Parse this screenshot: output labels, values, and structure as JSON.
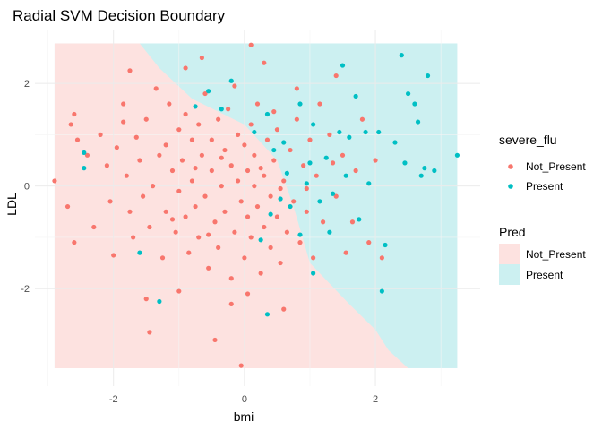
{
  "chart_data": {
    "type": "scatter",
    "title": "Radial SVM Decision Boundary",
    "xlabel": "bmi",
    "ylabel": "LDL",
    "xlim": [
      -3.2,
      3.6
    ],
    "ylim": [
      -3.9,
      3.05
    ],
    "x_ticks": [
      -2,
      0,
      2
    ],
    "y_ticks": [
      -2,
      0,
      2
    ],
    "x_tick_labels": [
      "-2",
      "0",
      "2"
    ],
    "y_tick_labels": [
      "-2",
      "0",
      "2"
    ],
    "grid": true,
    "legend_position": "right",
    "background_region": {
      "x_range": [
        -2.9,
        3.25
      ],
      "y_range": [
        -3.55,
        2.78
      ],
      "description_class": "Not_Present",
      "boundary_polyline": [
        [
          -1.6,
          2.78
        ],
        [
          -1.3,
          2.3
        ],
        [
          -0.8,
          1.7
        ],
        [
          0.0,
          1.2
        ],
        [
          0.5,
          0.5
        ],
        [
          0.75,
          -0.4
        ],
        [
          1.0,
          -1.5
        ],
        [
          1.6,
          -2.3
        ],
        [
          2.0,
          -2.8
        ],
        [
          2.2,
          -3.2
        ],
        [
          2.5,
          -3.55
        ]
      ]
    },
    "legends": [
      {
        "title": "severe_flu",
        "kind": "points",
        "entries": [
          {
            "label": "Not_Present",
            "color": "#f8766d"
          },
          {
            "label": "Present",
            "color": "#00bfc4"
          }
        ]
      },
      {
        "title": "Pred",
        "kind": "fill",
        "entries": [
          {
            "label": "Not_Present",
            "color": "#fde2e0"
          },
          {
            "label": "Present",
            "color": "#ccf0f1"
          }
        ]
      }
    ],
    "series": [
      {
        "name": "Not_Present",
        "color": "#f8766d",
        "points": [
          [
            -2.9,
            0.1
          ],
          [
            -2.6,
            1.4
          ],
          [
            -2.65,
            1.2
          ],
          [
            -2.55,
            0.9
          ],
          [
            -2.6,
            -1.1
          ],
          [
            -2.7,
            -0.4
          ],
          [
            -2.4,
            0.6
          ],
          [
            -2.2,
            1.0
          ],
          [
            -2.1,
            0.4
          ],
          [
            -2.05,
            -0.3
          ],
          [
            -2.0,
            -1.35
          ],
          [
            -1.95,
            0.75
          ],
          [
            -1.85,
            1.25
          ],
          [
            -1.8,
            0.2
          ],
          [
            -1.75,
            -0.5
          ],
          [
            -1.7,
            -1.0
          ],
          [
            -1.65,
            0.95
          ],
          [
            -1.6,
            0.5
          ],
          [
            -1.55,
            -0.2
          ],
          [
            -1.5,
            1.3
          ],
          [
            -1.45,
            -0.8
          ],
          [
            -1.4,
            0.0
          ],
          [
            -1.35,
            1.9
          ],
          [
            -1.3,
            0.6
          ],
          [
            -1.25,
            -1.4
          ],
          [
            -1.2,
            0.8
          ],
          [
            -1.2,
            -0.5
          ],
          [
            -1.15,
            1.6
          ],
          [
            -1.1,
            0.3
          ],
          [
            -1.05,
            -0.9
          ],
          [
            -1.0,
            1.1
          ],
          [
            -1.0,
            -0.1
          ],
          [
            -0.95,
            0.5
          ],
          [
            -0.9,
            -0.6
          ],
          [
            -0.9,
            1.4
          ],
          [
            -0.85,
            -1.3
          ],
          [
            -0.8,
            0.9
          ],
          [
            -0.8,
            0.1
          ],
          [
            -0.75,
            -0.4
          ],
          [
            -0.7,
            1.2
          ],
          [
            -0.7,
            -1.0
          ],
          [
            -0.65,
            0.6
          ],
          [
            -0.6,
            -0.2
          ],
          [
            -0.6,
            1.8
          ],
          [
            -0.55,
            -1.6
          ],
          [
            -0.5,
            0.3
          ],
          [
            -0.5,
            0.9
          ],
          [
            -0.45,
            -0.7
          ],
          [
            -0.4,
            1.3
          ],
          [
            -0.4,
            -1.2
          ],
          [
            -0.35,
            0.0
          ],
          [
            -0.3,
            0.7
          ],
          [
            -0.3,
            -0.5
          ],
          [
            -0.25,
            1.5
          ],
          [
            -0.2,
            -1.8
          ],
          [
            -0.2,
            0.4
          ],
          [
            -0.15,
            -0.9
          ],
          [
            -0.1,
            1.0
          ],
          [
            -0.1,
            0.1
          ],
          [
            -0.05,
            -0.3
          ],
          [
            0.0,
            0.8
          ],
          [
            0.0,
            -1.4
          ],
          [
            0.05,
            0.3
          ],
          [
            0.05,
            -0.6
          ],
          [
            0.1,
            1.2
          ],
          [
            0.1,
            -1.0
          ],
          [
            0.15,
            0.0
          ],
          [
            0.15,
            0.6
          ],
          [
            0.2,
            -0.4
          ],
          [
            0.2,
            1.6
          ],
          [
            0.25,
            -1.7
          ],
          [
            0.3,
            0.2
          ],
          [
            0.3,
            -0.8
          ],
          [
            0.35,
            0.9
          ],
          [
            0.4,
            -0.2
          ],
          [
            0.4,
            -1.2
          ],
          [
            0.45,
            0.5
          ],
          [
            0.5,
            -0.6
          ],
          [
            0.5,
            1.1
          ],
          [
            0.55,
            -1.5
          ],
          [
            0.6,
            0.1
          ],
          [
            0.65,
            -0.9
          ],
          [
            0.7,
            0.7
          ],
          [
            0.75,
            -0.3
          ],
          [
            0.8,
            1.3
          ],
          [
            0.85,
            -1.1
          ],
          [
            0.9,
            0.4
          ],
          [
            0.95,
            -0.5
          ],
          [
            1.0,
            0.9
          ],
          [
            1.05,
            -1.4
          ],
          [
            1.1,
            0.2
          ],
          [
            1.2,
            -0.7
          ],
          [
            1.3,
            1.0
          ],
          [
            1.4,
            -0.2
          ],
          [
            1.5,
            0.6
          ],
          [
            1.55,
            -1.3
          ],
          [
            1.65,
            -0.7
          ],
          [
            1.7,
            0.3
          ],
          [
            1.8,
            1.3
          ],
          [
            1.9,
            -1.1
          ],
          [
            2.0,
            0.5
          ],
          [
            2.1,
            -1.4
          ],
          [
            0.1,
            2.75
          ],
          [
            -0.2,
            -2.3
          ],
          [
            0.6,
            -2.4
          ],
          [
            -0.45,
            -3.0
          ],
          [
            -1.5,
            -2.2
          ],
          [
            -0.05,
            -3.5
          ],
          [
            -1.45,
            -2.85
          ],
          [
            0.05,
            -2.1
          ],
          [
            -1.75,
            2.25
          ],
          [
            -1.85,
            1.6
          ],
          [
            -2.3,
            -0.8
          ],
          [
            -1.0,
            -2.05
          ],
          [
            0.3,
            2.4
          ],
          [
            0.8,
            1.9
          ],
          [
            -0.65,
            2.5
          ],
          [
            -0.9,
            2.3
          ],
          [
            1.15,
            1.6
          ],
          [
            1.4,
            2.15
          ],
          [
            0.55,
            -0.05
          ],
          [
            -0.75,
            0.35
          ],
          [
            -0.35,
            0.55
          ],
          [
            0.25,
            0.35
          ],
          [
            -1.1,
            -0.65
          ],
          [
            -0.55,
            -0.95
          ],
          [
            0.45,
            1.45
          ],
          [
            -0.15,
            1.95
          ],
          [
            0.95,
            -0.05
          ],
          [
            1.35,
            0.45
          ]
        ]
      },
      {
        "name": "Present",
        "color": "#00bfc4",
        "points": [
          [
            -2.45,
            0.65
          ],
          [
            -2.45,
            0.35
          ],
          [
            -1.6,
            -1.3
          ],
          [
            -0.75,
            1.55
          ],
          [
            -0.55,
            1.85
          ],
          [
            -0.35,
            1.5
          ],
          [
            -0.2,
            2.05
          ],
          [
            0.15,
            1.05
          ],
          [
            0.35,
            1.4
          ],
          [
            0.45,
            0.7
          ],
          [
            0.55,
            -0.25
          ],
          [
            0.7,
            -0.4
          ],
          [
            0.85,
            1.6
          ],
          [
            0.95,
            0.05
          ],
          [
            1.05,
            1.2
          ],
          [
            1.15,
            -0.3
          ],
          [
            1.25,
            0.55
          ],
          [
            1.35,
            -0.15
          ],
          [
            1.45,
            1.05
          ],
          [
            1.5,
            2.35
          ],
          [
            1.6,
            0.95
          ],
          [
            1.75,
            -0.65
          ],
          [
            1.85,
            1.05
          ],
          [
            1.9,
            0.05
          ],
          [
            2.05,
            1.05
          ],
          [
            2.1,
            -2.05
          ],
          [
            2.15,
            -1.15
          ],
          [
            2.3,
            0.85
          ],
          [
            2.45,
            0.45
          ],
          [
            2.5,
            1.8
          ],
          [
            2.6,
            1.6
          ],
          [
            2.65,
            1.25
          ],
          [
            2.7,
            0.2
          ],
          [
            2.75,
            0.35
          ],
          [
            2.8,
            2.15
          ],
          [
            2.9,
            0.3
          ],
          [
            3.25,
            0.6
          ],
          [
            2.4,
            2.55
          ],
          [
            0.25,
            -1.05
          ],
          [
            0.4,
            -0.55
          ],
          [
            0.85,
            -0.95
          ],
          [
            0.6,
            0.85
          ],
          [
            1.05,
            -1.7
          ],
          [
            -1.3,
            -2.25
          ],
          [
            0.35,
            -2.5
          ],
          [
            0.65,
            0.25
          ],
          [
            1.0,
            0.45
          ],
          [
            1.3,
            -0.9
          ],
          [
            1.55,
            0.2
          ],
          [
            1.7,
            1.75
          ]
        ]
      }
    ]
  }
}
